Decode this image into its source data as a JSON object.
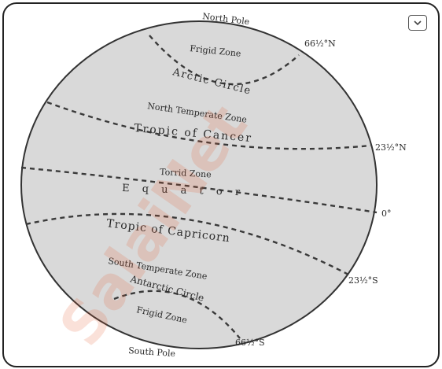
{
  "colors": {
    "globe_fill": "#d9d9d9",
    "globe_stroke": "#333333",
    "line": "#3a3a3a",
    "text": "#2a2a2a",
    "frame": "#222222",
    "watermark": "#e65a2a"
  },
  "icons": {
    "expand": "chevron-down-icon"
  },
  "labels": {
    "north_pole": "North Pole",
    "south_pole": "South Pole",
    "north_frigid": "Frigid Zone",
    "south_frigid": "Frigid Zone",
    "arctic_circle": "Arctic Circle",
    "antarctic_circle": "Antarctic Circle",
    "north_temperate": "North Temperate Zone",
    "south_temperate": "South Temperate Zone",
    "tropic_cancer": "Tropic of Cancer",
    "tropic_capricorn": "Tropic of Capricorn",
    "torrid": "Torrid Zone",
    "equator": "E q u a t o r"
  },
  "latitudes": {
    "arctic": "66½°N",
    "cancer": "23½°N",
    "equator": "0°",
    "capricorn": "23½°S",
    "antarctic": "66½°S"
  },
  "watermark": "SalaiNet"
}
